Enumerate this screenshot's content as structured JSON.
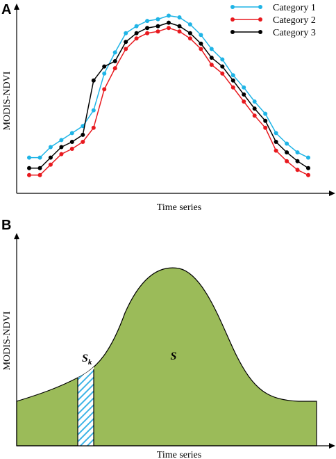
{
  "chart_data": [
    {
      "panel_label": "A",
      "type": "line",
      "xlabel": "Time series",
      "ylabel": "MODIS-NDVI",
      "x": [
        1,
        2,
        3,
        4,
        5,
        6,
        7,
        8,
        9,
        10,
        11,
        12,
        13,
        14,
        15,
        16,
        17,
        18,
        19,
        20,
        21,
        22,
        23,
        24,
        25,
        26,
        27
      ],
      "ylim": [
        0,
        1
      ],
      "legend_position": "top-right",
      "series": [
        {
          "name": "Category 1",
          "color": "#1fb4e6",
          "values": [
            0.18,
            0.18,
            0.24,
            0.28,
            0.32,
            0.36,
            0.45,
            0.66,
            0.78,
            0.89,
            0.93,
            0.96,
            0.97,
            0.99,
            0.98,
            0.94,
            0.88,
            0.8,
            0.74,
            0.65,
            0.58,
            0.5,
            0.43,
            0.32,
            0.26,
            0.21,
            0.18
          ]
        },
        {
          "name": "Category 2",
          "color": "#e8191e",
          "values": [
            0.08,
            0.08,
            0.14,
            0.2,
            0.23,
            0.27,
            0.35,
            0.57,
            0.69,
            0.8,
            0.86,
            0.89,
            0.9,
            0.92,
            0.9,
            0.86,
            0.8,
            0.71,
            0.66,
            0.58,
            0.5,
            0.42,
            0.35,
            0.22,
            0.16,
            0.11,
            0.08
          ]
        },
        {
          "name": "Category 3",
          "color": "#000000",
          "values": [
            0.12,
            0.12,
            0.18,
            0.24,
            0.27,
            0.31,
            0.62,
            0.7,
            0.73,
            0.84,
            0.89,
            0.92,
            0.93,
            0.95,
            0.93,
            0.89,
            0.83,
            0.75,
            0.7,
            0.62,
            0.54,
            0.46,
            0.39,
            0.27,
            0.21,
            0.16,
            0.12
          ]
        }
      ]
    },
    {
      "panel_label": "B",
      "type": "area",
      "xlabel": "Time series",
      "ylabel": "MODIS-NDVI",
      "area_color": "#9bbb59",
      "strip_color": "#3eb4e6",
      "area_label": "S",
      "strip_label_main": "S",
      "strip_label_sub": "k"
    }
  ]
}
